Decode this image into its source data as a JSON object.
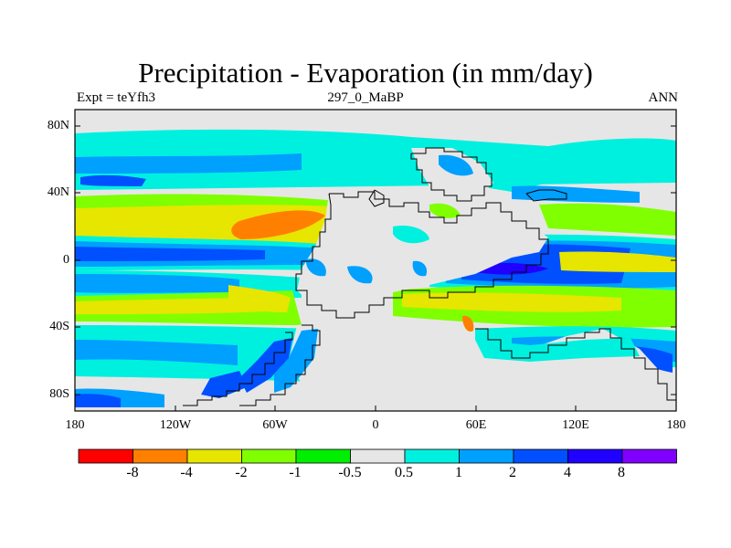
{
  "title": "Precipitation - Evaporation (in mm/day)",
  "subtitle_left": "Expt = teYfh3",
  "subtitle_center": "297_0_MaBP",
  "subtitle_right": "ANN",
  "lat_ticks": [
    "80N",
    "40N",
    "0",
    "40S",
    "80S"
  ],
  "lon_ticks": [
    "180",
    "120W",
    "60W",
    "0",
    "60E",
    "120E",
    "180"
  ],
  "colorbar": {
    "labels": [
      "-8",
      "-4",
      "-2",
      "-1",
      "-0.5",
      "0.5",
      "1",
      "2",
      "4",
      "8"
    ],
    "colors": [
      "#ff0000",
      "#ff8000",
      "#e6e600",
      "#80ff00",
      "#00ee00",
      "#e6e6e6",
      "#00f0e0",
      "#00a0ff",
      "#0050ff",
      "#2000ff",
      "#8000ff"
    ]
  },
  "palette": {
    "dry_strong": "#ff8000",
    "dry": "#e6e600",
    "dry_mild": "#80ff00",
    "dry_weak": "#00ee00",
    "neutral": "#e6e6e6",
    "wet_weak": "#00f0e0",
    "wet": "#00a0ff",
    "wet_strong": "#0050ff",
    "wet_very_strong": "#2000ff"
  }
}
